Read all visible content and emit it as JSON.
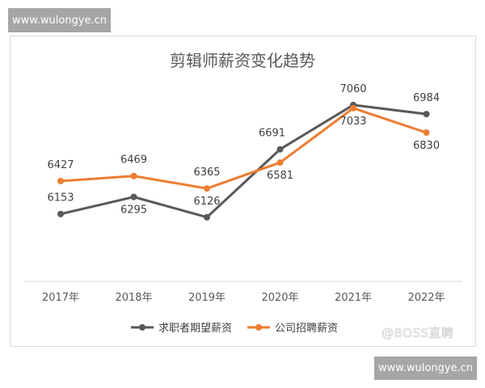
{
  "watermark_top": "www.wulongye.cn",
  "watermark_bottom": "www.wulongye.cn",
  "source_watermark": "@BOSS直聘",
  "chart_data": {
    "type": "line",
    "title": "剪辑师薪资变化趋势",
    "categories": [
      "2017年",
      "2018年",
      "2019年",
      "2020年",
      "2021年",
      "2022年"
    ],
    "ylim": [
      5600,
      7200
    ],
    "grid": false,
    "legend": "bottom",
    "series": [
      {
        "name": "求职者期望薪资",
        "color": "#595959",
        "values": [
          6153,
          6295,
          6126,
          6691,
          7060,
          6984
        ],
        "label_pos": [
          "above",
          "below",
          "above",
          "above",
          "above",
          "above"
        ]
      },
      {
        "name": "公司招聘薪资",
        "color": "#ed7d31",
        "values": [
          6427,
          6469,
          6365,
          6581,
          7033,
          6830
        ],
        "label_pos": [
          "above",
          "above",
          "above",
          "below",
          "below",
          "below"
        ]
      }
    ]
  }
}
